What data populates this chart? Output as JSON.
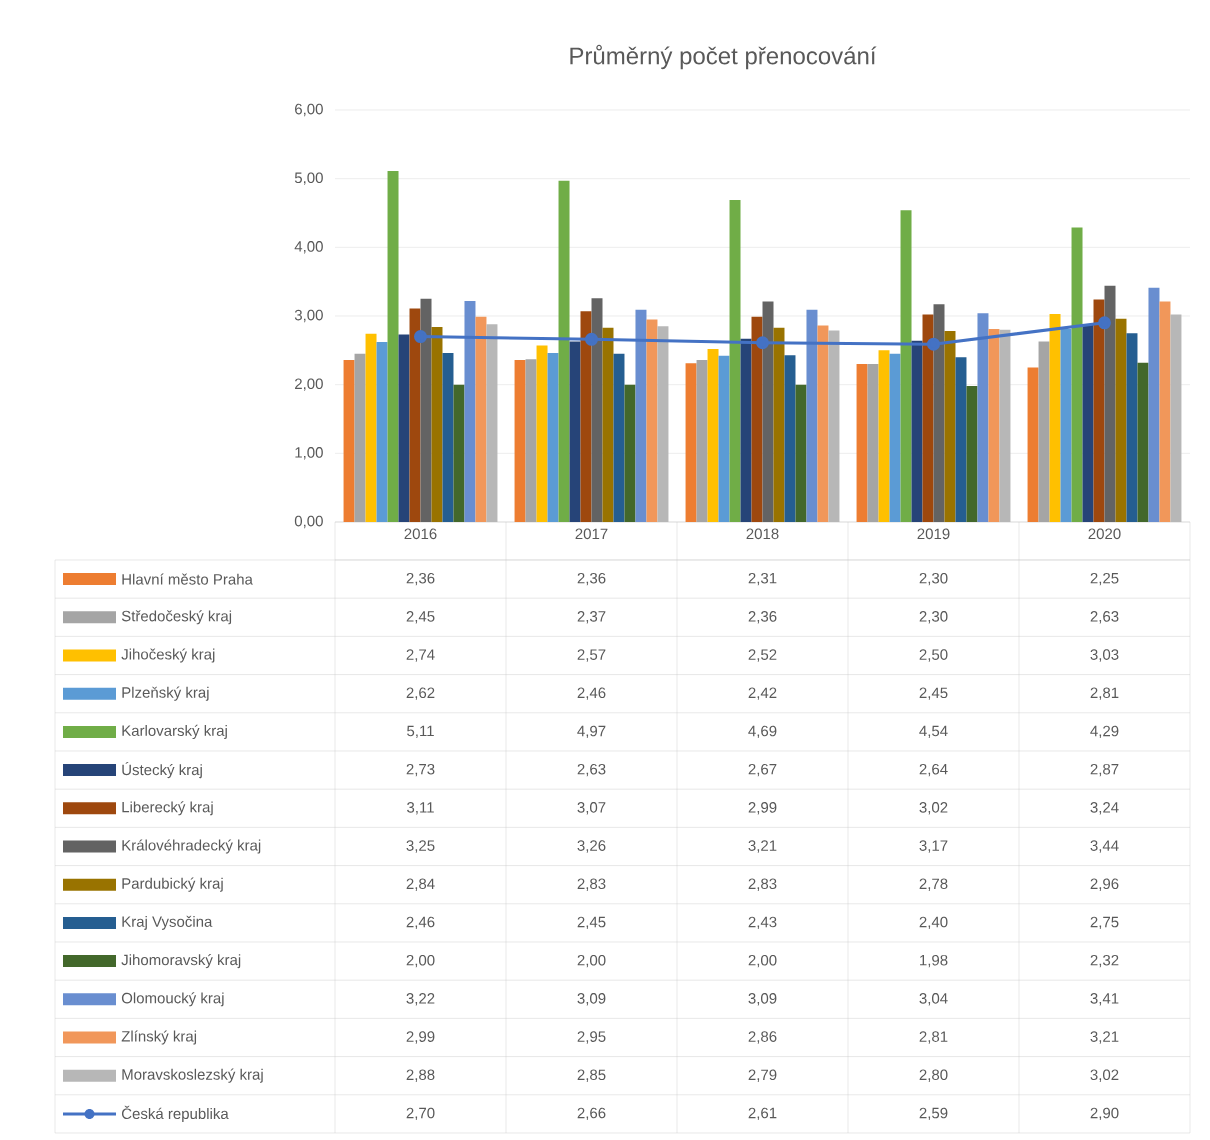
{
  "chart_data": {
    "type": "bar",
    "title": "Průměrný počet přenocování",
    "categories": [
      "2016",
      "2017",
      "2018",
      "2019",
      "2020"
    ],
    "ylim": [
      0,
      6
    ],
    "yticks": [
      {
        "value": 0,
        "label": "0,00"
      },
      {
        "value": 1,
        "label": "1,00"
      },
      {
        "value": 2,
        "label": "2,00"
      },
      {
        "value": 3,
        "label": "3,00"
      },
      {
        "value": 4,
        "label": "4,00"
      },
      {
        "value": 5,
        "label": "5,00"
      },
      {
        "value": 6,
        "label": "6,00"
      }
    ],
    "grid": "y",
    "legend": "bottom",
    "series": [
      {
        "name": "Hlavní město Praha",
        "color": "#ed7d31",
        "values": [
          2.36,
          2.36,
          2.31,
          2.3,
          2.25
        ],
        "value_labels": [
          "2,36",
          "2,36",
          "2,31",
          "2,30",
          "2,25"
        ]
      },
      {
        "name": "Středočeský kraj",
        "color": "#a5a5a5",
        "values": [
          2.45,
          2.37,
          2.36,
          2.3,
          2.63
        ],
        "value_labels": [
          "2,45",
          "2,37",
          "2,36",
          "2,30",
          "2,63"
        ]
      },
      {
        "name": "Jihočeský kraj",
        "color": "#ffc000",
        "values": [
          2.74,
          2.57,
          2.52,
          2.5,
          3.03
        ],
        "value_labels": [
          "2,74",
          "2,57",
          "2,52",
          "2,50",
          "3,03"
        ]
      },
      {
        "name": "Plzeňský kraj",
        "color": "#5b9bd5",
        "values": [
          2.62,
          2.46,
          2.42,
          2.45,
          2.81
        ],
        "value_labels": [
          "2,62",
          "2,46",
          "2,42",
          "2,45",
          "2,81"
        ]
      },
      {
        "name": "Karlovarský kraj",
        "color": "#70ad47",
        "values": [
          5.11,
          4.97,
          4.69,
          4.54,
          4.29
        ],
        "value_labels": [
          "5,11",
          "4,97",
          "4,69",
          "4,54",
          "4,29"
        ]
      },
      {
        "name": "Ústecký kraj",
        "color": "#264478",
        "values": [
          2.73,
          2.63,
          2.67,
          2.64,
          2.87
        ],
        "value_labels": [
          "2,73",
          "2,63",
          "2,67",
          "2,64",
          "2,87"
        ]
      },
      {
        "name": "Liberecký kraj",
        "color": "#9e480e",
        "values": [
          3.11,
          3.07,
          2.99,
          3.02,
          3.24
        ],
        "value_labels": [
          "3,11",
          "3,07",
          "2,99",
          "3,02",
          "3,24"
        ]
      },
      {
        "name": "Královéhradecký kraj",
        "color": "#636363",
        "values": [
          3.25,
          3.26,
          3.21,
          3.17,
          3.44
        ],
        "value_labels": [
          "3,25",
          "3,26",
          "3,21",
          "3,17",
          "3,44"
        ]
      },
      {
        "name": "Pardubický kraj",
        "color": "#997300",
        "values": [
          2.84,
          2.83,
          2.83,
          2.78,
          2.96
        ],
        "value_labels": [
          "2,84",
          "2,83",
          "2,83",
          "2,78",
          "2,96"
        ]
      },
      {
        "name": "Kraj Vysočina",
        "color": "#255e91",
        "values": [
          2.46,
          2.45,
          2.43,
          2.4,
          2.75
        ],
        "value_labels": [
          "2,46",
          "2,45",
          "2,43",
          "2,40",
          "2,75"
        ]
      },
      {
        "name": "Jihomoravský kraj",
        "color": "#43682b",
        "values": [
          2.0,
          2.0,
          2.0,
          1.98,
          2.32
        ],
        "value_labels": [
          "2,00",
          "2,00",
          "2,00",
          "1,98",
          "2,32"
        ]
      },
      {
        "name": "Olomoucký kraj",
        "color": "#698ed0",
        "values": [
          3.22,
          3.09,
          3.09,
          3.04,
          3.41
        ],
        "value_labels": [
          "3,22",
          "3,09",
          "3,09",
          "3,04",
          "3,41"
        ]
      },
      {
        "name": "Zlínský kraj",
        "color": "#f1975a",
        "values": [
          2.99,
          2.95,
          2.86,
          2.81,
          3.21
        ],
        "value_labels": [
          "2,99",
          "2,95",
          "2,86",
          "2,81",
          "3,21"
        ]
      },
      {
        "name": "Moravskoslezský kraj",
        "color": "#b7b7b7",
        "values": [
          2.88,
          2.85,
          2.79,
          2.8,
          3.02
        ],
        "value_labels": [
          "2,88",
          "2,85",
          "2,79",
          "2,80",
          "3,02"
        ]
      },
      {
        "name": "Česká republika",
        "color": "#4472c4",
        "type": "line",
        "marker": "circle",
        "values": [
          2.7,
          2.66,
          2.61,
          2.59,
          2.9
        ],
        "value_labels": [
          "2,70",
          "2,66",
          "2,61",
          "2,59",
          "2,90"
        ]
      }
    ]
  }
}
